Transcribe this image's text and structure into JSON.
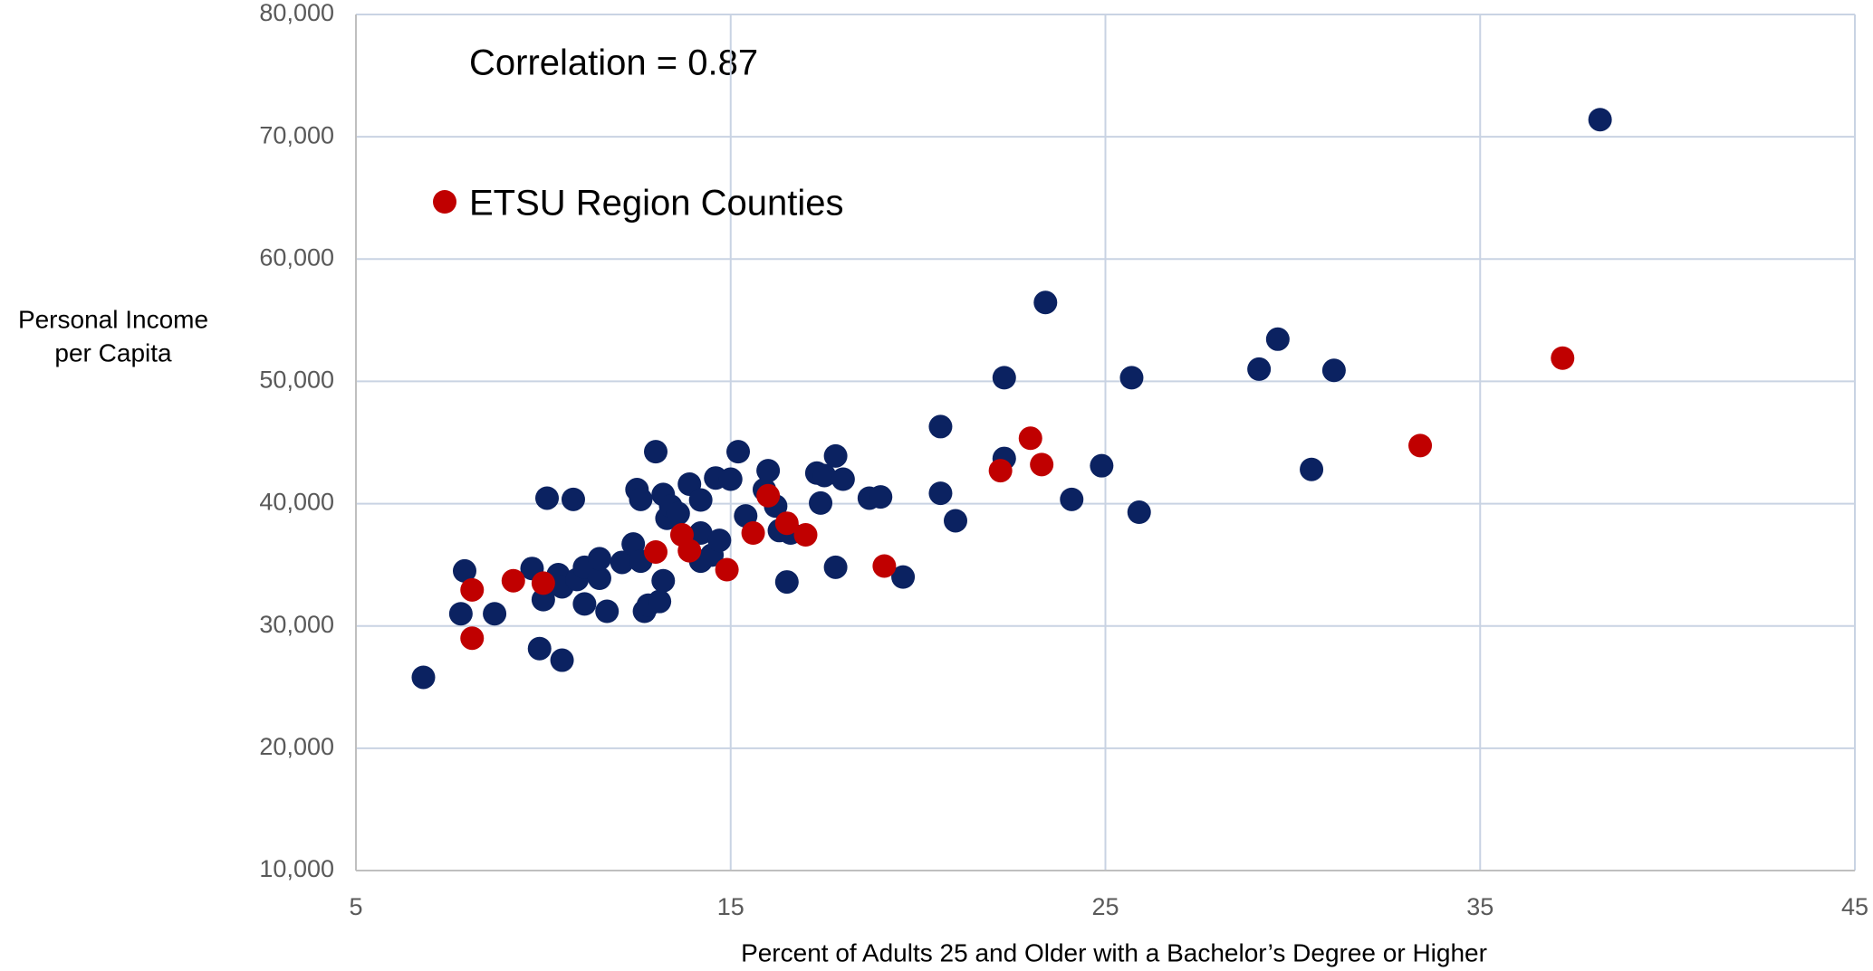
{
  "chart_data": {
    "type": "scatter",
    "annotation": "Correlation = 0.87",
    "xlabel": "Percent of Adults 25 and Older with a Bachelor’s Degree or Higher",
    "ylabel": [
      "Personal Income",
      "per Capita"
    ],
    "xlim": [
      5,
      45
    ],
    "xticks": [
      5,
      15,
      25,
      35,
      45
    ],
    "ylim": [
      10000,
      80000
    ],
    "yticks": [
      {
        "value": 10000,
        "label": "10,000"
      },
      {
        "value": 20000,
        "label": "20,000"
      },
      {
        "value": 30000,
        "label": "30,000"
      },
      {
        "value": 40000,
        "label": "40,000"
      },
      {
        "value": 50000,
        "label": "50,000"
      },
      {
        "value": 60000,
        "label": "60,000"
      },
      {
        "value": 70000,
        "label": "70,000"
      },
      {
        "value": 80000,
        "label": "80,000"
      }
    ],
    "grid": true,
    "series": [
      {
        "color": "#0b2261",
        "x": [
          6.8,
          7.9,
          7.8,
          8.7,
          9.7,
          9.9,
          10.0,
          10.1,
          10.4,
          10.5,
          10.5,
          10.8,
          10.9,
          11.1,
          11.1,
          11.5,
          11.5,
          11.7,
          12.1,
          12.4,
          12.5,
          12.6,
          12.6,
          12.7,
          12.8,
          13.0,
          13.1,
          13.2,
          13.2,
          13.3,
          13.4,
          13.6,
          13.9,
          14.2,
          14.2,
          14.2,
          14.5,
          14.6,
          14.7,
          15.0,
          15.2,
          15.4,
          15.9,
          16.0,
          16.2,
          16.3,
          16.6,
          16.5,
          17.3,
          17.5,
          17.4,
          17.8,
          18.0,
          17.8,
          18.7,
          19.0,
          19.6,
          20.6,
          20.6,
          21.0,
          22.3,
          22.3,
          23.4,
          24.1,
          24.9,
          25.7,
          25.9,
          29.1,
          29.6,
          30.5,
          31.1,
          38.2
        ],
        "y": [
          25800,
          34500,
          31000,
          31000,
          34700,
          28150,
          32150,
          40450,
          34200,
          33200,
          27200,
          40350,
          33800,
          34800,
          31800,
          33900,
          35500,
          31200,
          35200,
          36700,
          41150,
          40350,
          35300,
          31200,
          31700,
          44250,
          32000,
          33700,
          40750,
          38800,
          39800,
          39200,
          41600,
          40300,
          37600,
          35300,
          35800,
          42100,
          37000,
          42000,
          44250,
          39000,
          41150,
          42700,
          39800,
          37800,
          37600,
          33600,
          42500,
          42300,
          40050,
          43900,
          42000,
          34800,
          40450,
          40550,
          34000,
          46300,
          40850,
          38600,
          50300,
          43700,
          56450,
          40350,
          43100,
          50300,
          39300,
          51000,
          53450,
          42800,
          50900,
          71400
        ]
      },
      {
        "name": "ETSU Region Counties",
        "color": "#c00000",
        "x": [
          8.1,
          8.1,
          9.2,
          10.0,
          13.0,
          13.7,
          13.9,
          14.9,
          15.6,
          16.0,
          16.5,
          17.0,
          19.1,
          22.2,
          23.0,
          23.3,
          33.4,
          37.2
        ],
        "y": [
          32950,
          29000,
          33700,
          33500,
          36050,
          37450,
          36150,
          34600,
          37600,
          40650,
          38400,
          37450,
          34900,
          42700,
          45350,
          43200,
          44750,
          51900
        ]
      }
    ]
  }
}
